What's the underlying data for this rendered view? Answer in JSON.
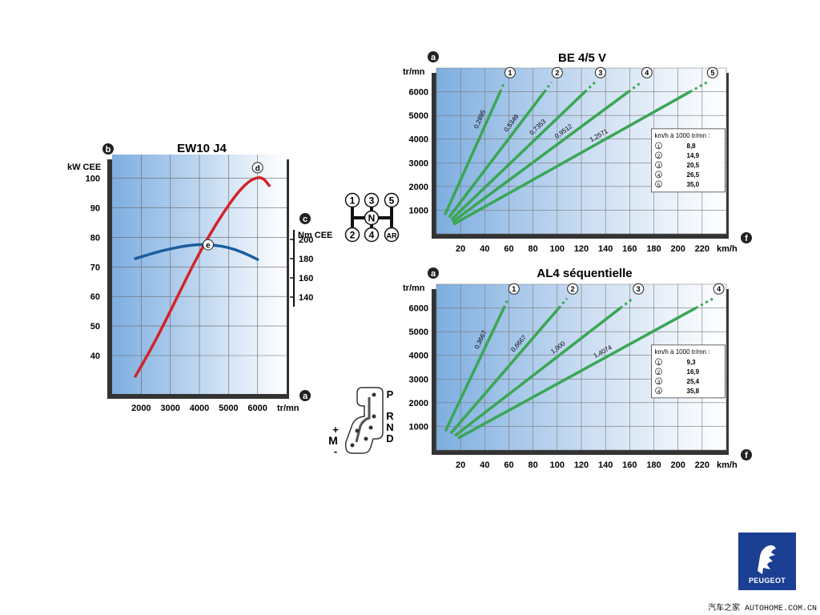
{
  "colors": {
    "power": "#d2232a",
    "torque": "#1b5e9e",
    "gear": "#3aa655",
    "grad_left": "#7eaee0",
    "grad_right": "#ffffff",
    "frame": "#2a2a2a",
    "logo_bg": "#1b3f93"
  },
  "chart_data": [
    {
      "type": "line",
      "title": "EW10 J4",
      "x_axis": {
        "marker": "a",
        "unit": "tr/mn",
        "ticks": [
          2000,
          3000,
          4000,
          5000,
          6000
        ],
        "range": [
          1000,
          7000
        ]
      },
      "y_axis_left": {
        "marker": "b",
        "unit": "kW CEE",
        "ticks": [
          40,
          50,
          60,
          70,
          80,
          90,
          100
        ],
        "range": [
          27,
          108
        ]
      },
      "y_axis_right": {
        "marker": "c",
        "unit": "Nm CEE",
        "ticks": [
          140,
          160,
          180,
          200
        ],
        "range": [
          130,
          210
        ]
      },
      "series": [
        {
          "id": "power",
          "marker": "d",
          "axis": "left",
          "x": [
            1800,
            2300,
            2800,
            3300,
            3800,
            4300,
            4800,
            5300,
            5700,
            6000,
            6200,
            6400
          ],
          "y": [
            33,
            41.5,
            51,
            61,
            71,
            80,
            88,
            95,
            99,
            100.3,
            100,
            97.5
          ]
        },
        {
          "id": "torque",
          "marker": "e",
          "axis": "left",
          "x": [
            1800,
            2500,
            3000,
            3500,
            4000,
            4500,
            5000,
            5500,
            6000
          ],
          "y": [
            72.8,
            74.9,
            76.1,
            77.1,
            77.6,
            77.4,
            76.6,
            74.9,
            72.5
          ]
        }
      ]
    },
    {
      "type": "line",
      "title": "BE 4/5 V",
      "x_axis": {
        "marker": "f",
        "unit": "km/h",
        "ticks": [
          20,
          40,
          60,
          80,
          100,
          120,
          140,
          160,
          180,
          200,
          220
        ],
        "range": [
          0,
          240
        ]
      },
      "y_axis": {
        "marker": "a",
        "unit": "tr/mn",
        "ticks": [
          1000,
          2000,
          3000,
          4000,
          5000,
          6000
        ],
        "range": [
          0,
          7000
        ]
      },
      "gears": [
        {
          "gear": "1",
          "ratio": "0,2895",
          "speed_per_1000": 8.8
        },
        {
          "gear": "2",
          "ratio": "0,5349",
          "speed_per_1000": 14.9
        },
        {
          "gear": "3",
          "ratio": "0,7353",
          "speed_per_1000": 20.5
        },
        {
          "gear": "4",
          "ratio": "0,9512",
          "speed_per_1000": 26.5
        },
        {
          "gear": "5",
          "ratio": "1,2571",
          "speed_per_1000": 35.0
        }
      ],
      "table_title": "km/h à 1000 tr/mn :",
      "table_values": [
        "8,8",
        "14,9",
        "20,5",
        "26,5",
        "35,0"
      ]
    },
    {
      "type": "line",
      "title": "AL4 séquentielle",
      "x_axis": {
        "marker": "f",
        "unit": "km/h",
        "ticks": [
          20,
          40,
          60,
          80,
          100,
          120,
          140,
          160,
          180,
          200,
          220
        ],
        "range": [
          0,
          240
        ]
      },
      "y_axis": {
        "marker": "a",
        "unit": "tr/mn",
        "ticks": [
          1000,
          2000,
          3000,
          4000,
          5000,
          6000
        ],
        "range": [
          0,
          7000
        ]
      },
      "gears": [
        {
          "gear": "1",
          "ratio": "0,3667",
          "speed_per_1000": 9.3
        },
        {
          "gear": "2",
          "ratio": "0,6667",
          "speed_per_1000": 16.9
        },
        {
          "gear": "3",
          "ratio": "1,000",
          "speed_per_1000": 25.4
        },
        {
          "gear": "4",
          "ratio": "1,4074",
          "speed_per_1000": 35.8
        }
      ],
      "table_title": "km/h à 1000 tr/mn :",
      "table_values": [
        "9,3",
        "16,9",
        "25,4",
        "35,8"
      ]
    }
  ],
  "shift_patterns": {
    "manual": {
      "top": [
        "1",
        "3",
        "5"
      ],
      "bottom": [
        "2",
        "4",
        "AR"
      ],
      "neutral": "N"
    },
    "auto": {
      "positions": [
        "P",
        "R",
        "N",
        "D"
      ],
      "manual": [
        "+",
        "M",
        "-"
      ]
    }
  },
  "logo": {
    "name": "PEUGEOT"
  },
  "watermark": "汽车之家 AUTOHOME.COM.CN"
}
